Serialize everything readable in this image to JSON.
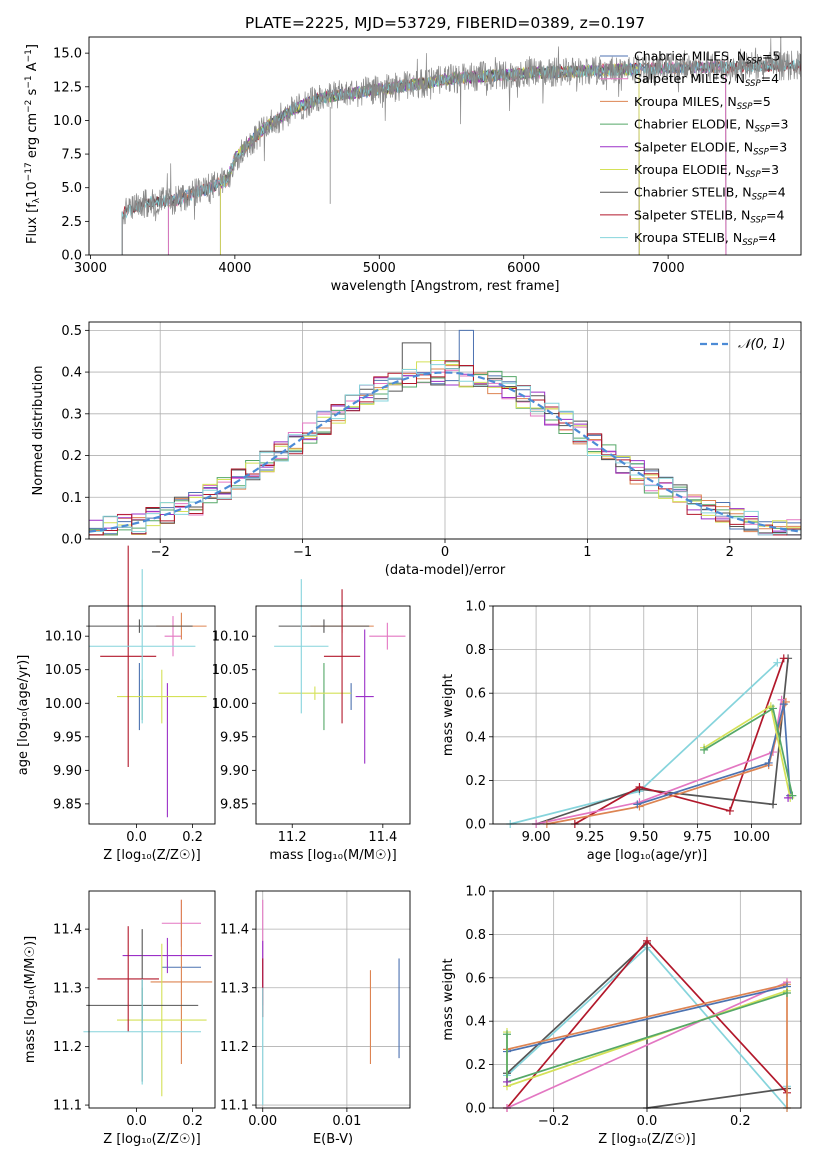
{
  "colors": {
    "chabrier_miles": "#4c72b0",
    "salpeter_miles": "#e377c2",
    "kroupa_miles": "#dd8452",
    "chabrier_elodie": "#55a868",
    "salpeter_elodie": "#9b30c8",
    "kroupa_elodie": "#d4e157",
    "chabrier_stelib": "#555555",
    "salpeter_stelib": "#b2182b",
    "kroupa_stelib": "#86d4dc",
    "gauss": "#4c8bd6",
    "grid": "#b0b0b0"
  },
  "legend_spectrum": [
    {
      "key": "chabrier_miles",
      "label": "Chabrier MILES, N",
      "sub": "SSP",
      "tail": "=5"
    },
    {
      "key": "salpeter_miles",
      "label": "Salpeter MILES, N",
      "sub": "SSP",
      "tail": "=4"
    },
    {
      "key": "kroupa_miles",
      "label": "Kroupa MILES, N",
      "sub": "SSP",
      "tail": "=5"
    },
    {
      "key": "chabrier_elodie",
      "label": "Chabrier ELODIE, N",
      "sub": "SSP",
      "tail": "=3"
    },
    {
      "key": "salpeter_elodie",
      "label": "Salpeter ELODIE, N",
      "sub": "SSP",
      "tail": "=3"
    },
    {
      "key": "kroupa_elodie",
      "label": "Kroupa ELODIE, N",
      "sub": "SSP",
      "tail": "=3"
    },
    {
      "key": "chabrier_stelib",
      "label": "Chabrier STELIB, N",
      "sub": "SSP",
      "tail": "=4"
    },
    {
      "key": "salpeter_stelib",
      "label": "Salpeter STELIB, N",
      "sub": "SSP",
      "tail": "=4"
    },
    {
      "key": "kroupa_stelib",
      "label": "Kroupa STELIB, N",
      "sub": "SSP",
      "tail": "=4"
    }
  ],
  "chart_data": [
    {
      "id": "spectrum",
      "type": "line",
      "title": "PLATE=2225, MJD=53729, FIBERID=0389, z=0.197",
      "xlabel": "wavelength [Angstrom, rest frame]",
      "ylabel": "Flux [f",
      "ylabel_sub": "λ",
      "ylabel_mid": "10",
      "ylabel_sup1": "−17",
      "ylabel_rest": " erg cm",
      "ylabel_sup2": "−2",
      "ylabel_rest2": " s",
      "ylabel_sup3": "−1",
      "ylabel_rest3": " A",
      "ylabel_sup4": "−1",
      "ylabel_end": "]",
      "xlim": [
        2990,
        7920
      ],
      "ylim": [
        0,
        16.2
      ],
      "xticks": [
        3000,
        4000,
        5000,
        6000,
        7000
      ],
      "xticklabels": [
        "3000",
        "4000",
        "5000",
        "6000",
        "7000"
      ],
      "yticks": [
        0,
        2.5,
        5,
        7.5,
        10,
        12.5,
        15
      ],
      "yticklabels": [
        "0.0",
        "2.5",
        "5.0",
        "7.5",
        "10.0",
        "12.5",
        "15.0"
      ],
      "continuum": [
        [
          3200,
          3.0
        ],
        [
          3400,
          3.9
        ],
        [
          3600,
          4.1
        ],
        [
          3800,
          4.9
        ],
        [
          3950,
          5.6
        ],
        [
          4000,
          7.2
        ],
        [
          4200,
          9.4
        ],
        [
          4400,
          10.8
        ],
        [
          4600,
          11.7
        ],
        [
          4800,
          12.0
        ],
        [
          5000,
          12.3
        ],
        [
          5200,
          12.6
        ],
        [
          5500,
          13.1
        ],
        [
          6000,
          13.5
        ],
        [
          6500,
          13.7
        ],
        [
          7000,
          13.9
        ],
        [
          7500,
          14.0
        ],
        [
          7920,
          14.1
        ]
      ],
      "model_ranges": {
        "chabrier_miles": [
          3540,
          7400
        ],
        "salpeter_miles": [
          3540,
          7400
        ],
        "kroupa_miles": [
          3540,
          7400
        ],
        "chabrier_elodie": [
          3900,
          6800
        ],
        "salpeter_elodie": [
          3900,
          6800
        ],
        "kroupa_elodie": [
          3900,
          6800
        ],
        "chabrier_stelib": [
          3220,
          7920
        ],
        "salpeter_stelib": [
          3220,
          7920
        ],
        "kroupa_stelib": [
          3220,
          7920
        ]
      }
    },
    {
      "id": "residuals",
      "type": "line",
      "xlabel": "(data-model)/error",
      "ylabel": "Normed distribution",
      "xlim": [
        -2.5,
        2.5
      ],
      "ylim": [
        0,
        0.52
      ],
      "xticks": [
        -2,
        -1,
        0,
        1,
        2
      ],
      "xticklabels": [
        "−2",
        "−1",
        "0",
        "1",
        "2"
      ],
      "yticks": [
        0,
        0.1,
        0.2,
        0.3,
        0.4,
        0.5
      ],
      "yticklabels": [
        "0.0",
        "0.1",
        "0.2",
        "0.3",
        "0.4",
        "0.5"
      ],
      "legend": "𝒩(0, 1)",
      "bin_width": 0.1,
      "gaussian": {
        "mean": 0,
        "sigma": 1
      }
    },
    {
      "id": "age_vs_Z",
      "type": "scatter",
      "xlabel": "Z [log₁₀(Z/Z☉)]",
      "ylabel": "age  [log₁₀(age/yr)]",
      "xlim": [
        -0.17,
        0.28
      ],
      "ylim": [
        9.82,
        10.145
      ],
      "xticks": [
        0,
        0.2
      ],
      "xticklabels": [
        "0.0",
        "0.2"
      ],
      "yticks": [
        9.85,
        9.9,
        9.95,
        10.0,
        10.05,
        10.1
      ],
      "yticklabels": [
        "9.85",
        "9.90",
        "9.95",
        "10.00",
        "10.05",
        "10.10"
      ],
      "points": [
        {
          "key": "chabrier_miles",
          "x": 0.01,
          "xerr": 0.0,
          "y": 10.01,
          "yerr": 0.05
        },
        {
          "key": "salpeter_miles",
          "x": 0.13,
          "xerr": 0.03,
          "y": 10.1,
          "yerr": 0.03
        },
        {
          "key": "kroupa_miles",
          "x": 0.16,
          "xerr": 0.09,
          "y": 10.115,
          "yerr": 0.02
        },
        {
          "key": "chabrier_elodie",
          "x": 0.02,
          "xerr": 0.0,
          "y": 10.005,
          "yerr": 0.03
        },
        {
          "key": "salpeter_elodie",
          "x": 0.11,
          "xerr": 0.0,
          "y": 9.93,
          "yerr": 0.1
        },
        {
          "key": "kroupa_elodie",
          "x": 0.09,
          "xerr": 0.16,
          "y": 10.01,
          "yerr": 0.04
        },
        {
          "key": "chabrier_stelib",
          "x": 0.01,
          "xerr": 0.19,
          "y": 10.115,
          "yerr": 0.01
        },
        {
          "key": "salpeter_stelib",
          "x": -0.03,
          "xerr": 0.1,
          "y": 10.07,
          "yerr": 0.165
        },
        {
          "key": "kroupa_stelib",
          "x": 0.02,
          "xerr": 0.19,
          "y": 10.085,
          "yerr": 0.115
        }
      ]
    },
    {
      "id": "age_vs_mass",
      "type": "scatter",
      "xlabel": "mass [log₁₀(M/M☉)]",
      "ylabel": "",
      "xlim": [
        11.12,
        11.46
      ],
      "ylim": [
        9.82,
        10.145
      ],
      "xticks": [
        11.2,
        11.4
      ],
      "xticklabels": [
        "11.2",
        "11.4"
      ],
      "yticks": [
        9.85,
        9.9,
        9.95,
        10.0,
        10.05,
        10.1
      ],
      "yticklabels": [
        "9.85",
        "9.90",
        "9.95",
        "10.00",
        "10.05",
        "10.10"
      ],
      "points": [
        {
          "key": "chabrier_miles",
          "x": 11.33,
          "xerr": 0.0,
          "y": 10.01,
          "yerr": 0.02
        },
        {
          "key": "salpeter_miles",
          "x": 11.41,
          "xerr": 0.04,
          "y": 10.1,
          "yerr": 0.02
        },
        {
          "key": "kroupa_miles",
          "x": 11.31,
          "xerr": 0.07,
          "y": 10.115,
          "yerr": 0.01
        },
        {
          "key": "chabrier_elodie",
          "x": 11.27,
          "xerr": 0.0,
          "y": 10.01,
          "yerr": 0.05
        },
        {
          "key": "salpeter_elodie",
          "x": 11.36,
          "xerr": 0.02,
          "y": 10.01,
          "yerr": 0.1
        },
        {
          "key": "kroupa_elodie",
          "x": 11.25,
          "xerr": 0.08,
          "y": 10.015,
          "yerr": 0.01
        },
        {
          "key": "chabrier_stelib",
          "x": 11.27,
          "xerr": 0.1,
          "y": 10.115,
          "yerr": 0.01
        },
        {
          "key": "salpeter_stelib",
          "x": 11.31,
          "xerr": 0.04,
          "y": 10.07,
          "yerr": 0.1
        },
        {
          "key": "kroupa_stelib",
          "x": 11.22,
          "xerr": 0.06,
          "y": 10.085,
          "yerr": 0.1
        }
      ]
    },
    {
      "id": "weight_vs_age",
      "type": "line",
      "xlabel": "age  [log₁₀(age/yr)]",
      "ylabel": "mass weight",
      "xlim": [
        8.8,
        10.23
      ],
      "ylim": [
        0,
        1.0
      ],
      "xticks": [
        9.0,
        9.25,
        9.5,
        9.75,
        10.0
      ],
      "xticklabels": [
        "9.00",
        "9.25",
        "9.50",
        "9.75",
        "10.00"
      ],
      "yticks": [
        0,
        0.2,
        0.4,
        0.6,
        0.8,
        1.0
      ],
      "yticklabels": [
        "0.0",
        "0.2",
        "0.4",
        "0.6",
        "0.8",
        "1.0"
      ],
      "series": [
        {
          "key": "kroupa_stelib",
          "points": [
            [
              8.88,
              0.0
            ],
            [
              9.48,
              0.15
            ],
            [
              10.12,
              0.74
            ]
          ]
        },
        {
          "key": "chabrier_stelib",
          "points": [
            [
              9.0,
              0.0
            ],
            [
              9.48,
              0.16
            ],
            [
              10.1,
              0.09
            ],
            [
              10.17,
              0.76
            ]
          ]
        },
        {
          "key": "salpeter_stelib",
          "points": [
            [
              9.18,
              0.0
            ],
            [
              9.48,
              0.17
            ],
            [
              9.9,
              0.06
            ],
            [
              10.15,
              0.76
            ]
          ]
        },
        {
          "key": "salpeter_miles",
          "points": [
            [
              9.0,
              0.0
            ],
            [
              9.48,
              0.1
            ],
            [
              10.1,
              0.33
            ],
            [
              10.14,
              0.57
            ]
          ]
        },
        {
          "key": "kroupa_miles",
          "points": [
            [
              9.05,
              0.0
            ],
            [
              9.48,
              0.08
            ],
            [
              10.08,
              0.27
            ],
            [
              10.16,
              0.56
            ]
          ]
        },
        {
          "key": "chabrier_miles",
          "points": [
            [
              9.47,
              0.09
            ],
            [
              10.08,
              0.28
            ],
            [
              10.15,
              0.55
            ],
            [
              10.18,
              0.13
            ]
          ]
        },
        {
          "key": "kroupa_elodie",
          "points": [
            [
              9.78,
              0.35
            ],
            [
              10.09,
              0.54
            ],
            [
              10.18,
              0.12
            ]
          ]
        },
        {
          "key": "chabrier_elodie",
          "points": [
            [
              9.78,
              0.34
            ],
            [
              10.1,
              0.53
            ],
            [
              10.19,
              0.13
            ]
          ]
        },
        {
          "key": "salpeter_elodie",
          "points": [
            [
              10.17,
              0.12
            ]
          ]
        }
      ]
    },
    {
      "id": "mass_vs_Z",
      "type": "scatter",
      "xlabel": "Z [log₁₀(Z/Z☉)]",
      "ylabel": "mass [log₁₀(M/M☉)]",
      "xlim": [
        -0.17,
        0.28
      ],
      "ylim": [
        11.095,
        11.465
      ],
      "xticks": [
        0,
        0.2
      ],
      "xticklabels": [
        "0.0",
        "0.2"
      ],
      "yticks": [
        11.1,
        11.2,
        11.3,
        11.4
      ],
      "yticklabels": [
        "11.1",
        "11.2",
        "11.3",
        "11.4"
      ],
      "points": [
        {
          "key": "chabrier_miles",
          "x": 0.16,
          "xerr": 0.07,
          "y": 11.335,
          "yerr": 0.0
        },
        {
          "key": "salpeter_miles",
          "x": 0.16,
          "xerr": 0.07,
          "y": 11.41,
          "yerr": 0.04
        },
        {
          "key": "kroupa_miles",
          "x": 0.16,
          "xerr": 0.11,
          "y": 11.31,
          "yerr": 0.14
        },
        {
          "key": "chabrier_elodie",
          "x": 0.02,
          "xerr": 0.0,
          "y": 11.27,
          "yerr": 0.03
        },
        {
          "key": "salpeter_elodie",
          "x": 0.11,
          "xerr": 0.16,
          "y": 11.355,
          "yerr": 0.03
        },
        {
          "key": "kroupa_elodie",
          "x": 0.09,
          "xerr": 0.16,
          "y": 11.245,
          "yerr": 0.13
        },
        {
          "key": "chabrier_stelib",
          "x": 0.02,
          "xerr": 0.2,
          "y": 11.27,
          "yerr": 0.13
        },
        {
          "key": "salpeter_stelib",
          "x": -0.03,
          "xerr": 0.11,
          "y": 11.315,
          "yerr": 0.09
        },
        {
          "key": "kroupa_stelib",
          "x": 0.02,
          "xerr": 0.21,
          "y": 11.225,
          "yerr": 0.09
        }
      ]
    },
    {
      "id": "mass_vs_ebv",
      "type": "scatter",
      "xlabel": "E(B-V)",
      "ylabel": "",
      "xlim": [
        -0.0008,
        0.0175
      ],
      "ylim": [
        11.095,
        11.465
      ],
      "xticks": [
        0,
        0.01
      ],
      "xticklabels": [
        "0.00",
        "0.01"
      ],
      "yticks": [
        11.1,
        11.2,
        11.3,
        11.4
      ],
      "yticklabels": [
        "11.1",
        "11.2",
        "11.3",
        "11.4"
      ],
      "points": [
        {
          "key": "salpeter_miles",
          "x": 0.0,
          "xerr": 0,
          "y": 11.36,
          "yerr": 0.09
        },
        {
          "key": "salpeter_elodie",
          "x": 0.0,
          "xerr": 0,
          "y": 11.34,
          "yerr": 0.04
        },
        {
          "key": "salpeter_stelib",
          "x": 0.0,
          "xerr": 0,
          "y": 11.3,
          "yerr": 0.05
        },
        {
          "key": "kroupa_stelib",
          "x": 0.0,
          "xerr": 0,
          "y": 11.2,
          "yerr": 0.1
        },
        {
          "key": "kroupa_miles",
          "x": 0.0128,
          "xerr": 0,
          "y": 11.25,
          "yerr": 0.08
        },
        {
          "key": "chabrier_miles",
          "x": 0.0162,
          "xerr": 0,
          "y": 11.265,
          "yerr": 0.085
        }
      ]
    },
    {
      "id": "weight_vs_Z",
      "type": "line",
      "xlabel": "Z [log₁₀(Z/Z☉)]",
      "ylabel": "mass weight",
      "xlim": [
        -0.33,
        0.33
      ],
      "ylim": [
        0,
        1.0
      ],
      "xticks": [
        -0.2,
        0,
        0.2
      ],
      "xticklabels": [
        "−0.2",
        "0.0",
        "0.2"
      ],
      "yticks": [
        0,
        0.2,
        0.4,
        0.6,
        0.8,
        1.0
      ],
      "yticklabels": [
        "0.0",
        "0.2",
        "0.4",
        "0.6",
        "0.8",
        "1.0"
      ],
      "series": [
        {
          "key": "kroupa_stelib",
          "points": [
            [
              -0.3,
              0.15
            ],
            [
              0.0,
              0.74
            ],
            [
              0.3,
              0.0
            ],
            [
              0.3,
              0.1
            ]
          ]
        },
        {
          "key": "chabrier_stelib",
          "points": [
            [
              -0.3,
              0.16
            ],
            [
              0.0,
              0.76
            ],
            [
              0.0,
              0.0
            ],
            [
              0.3,
              0.09
            ]
          ]
        },
        {
          "key": "salpeter_stelib",
          "points": [
            [
              -0.3,
              0.0
            ],
            [
              0.0,
              0.77
            ],
            [
              0.3,
              0.07
            ]
          ]
        },
        {
          "key": "salpeter_miles",
          "points": [
            [
              -0.3,
              0.0
            ],
            [
              0.3,
              0.58
            ]
          ]
        },
        {
          "key": "kroupa_miles",
          "points": [
            [
              -0.3,
              0.27
            ],
            [
              0.3,
              0.57
            ],
            [
              0.3,
              0.0
            ]
          ]
        },
        {
          "key": "chabrier_miles",
          "points": [
            [
              -0.3,
              0.26
            ],
            [
              0.3,
              0.56
            ]
          ]
        },
        {
          "key": "kroupa_elodie",
          "points": [
            [
              -0.3,
              0.35
            ],
            [
              -0.3,
              0.1
            ],
            [
              0.3,
              0.54
            ]
          ]
        },
        {
          "key": "chabrier_elodie",
          "points": [
            [
              -0.3,
              0.34
            ],
            [
              -0.3,
              0.12
            ],
            [
              0.3,
              0.53
            ]
          ]
        },
        {
          "key": "salpeter_elodie",
          "points": [
            [
              -0.3,
              0.12
            ]
          ]
        }
      ]
    }
  ]
}
